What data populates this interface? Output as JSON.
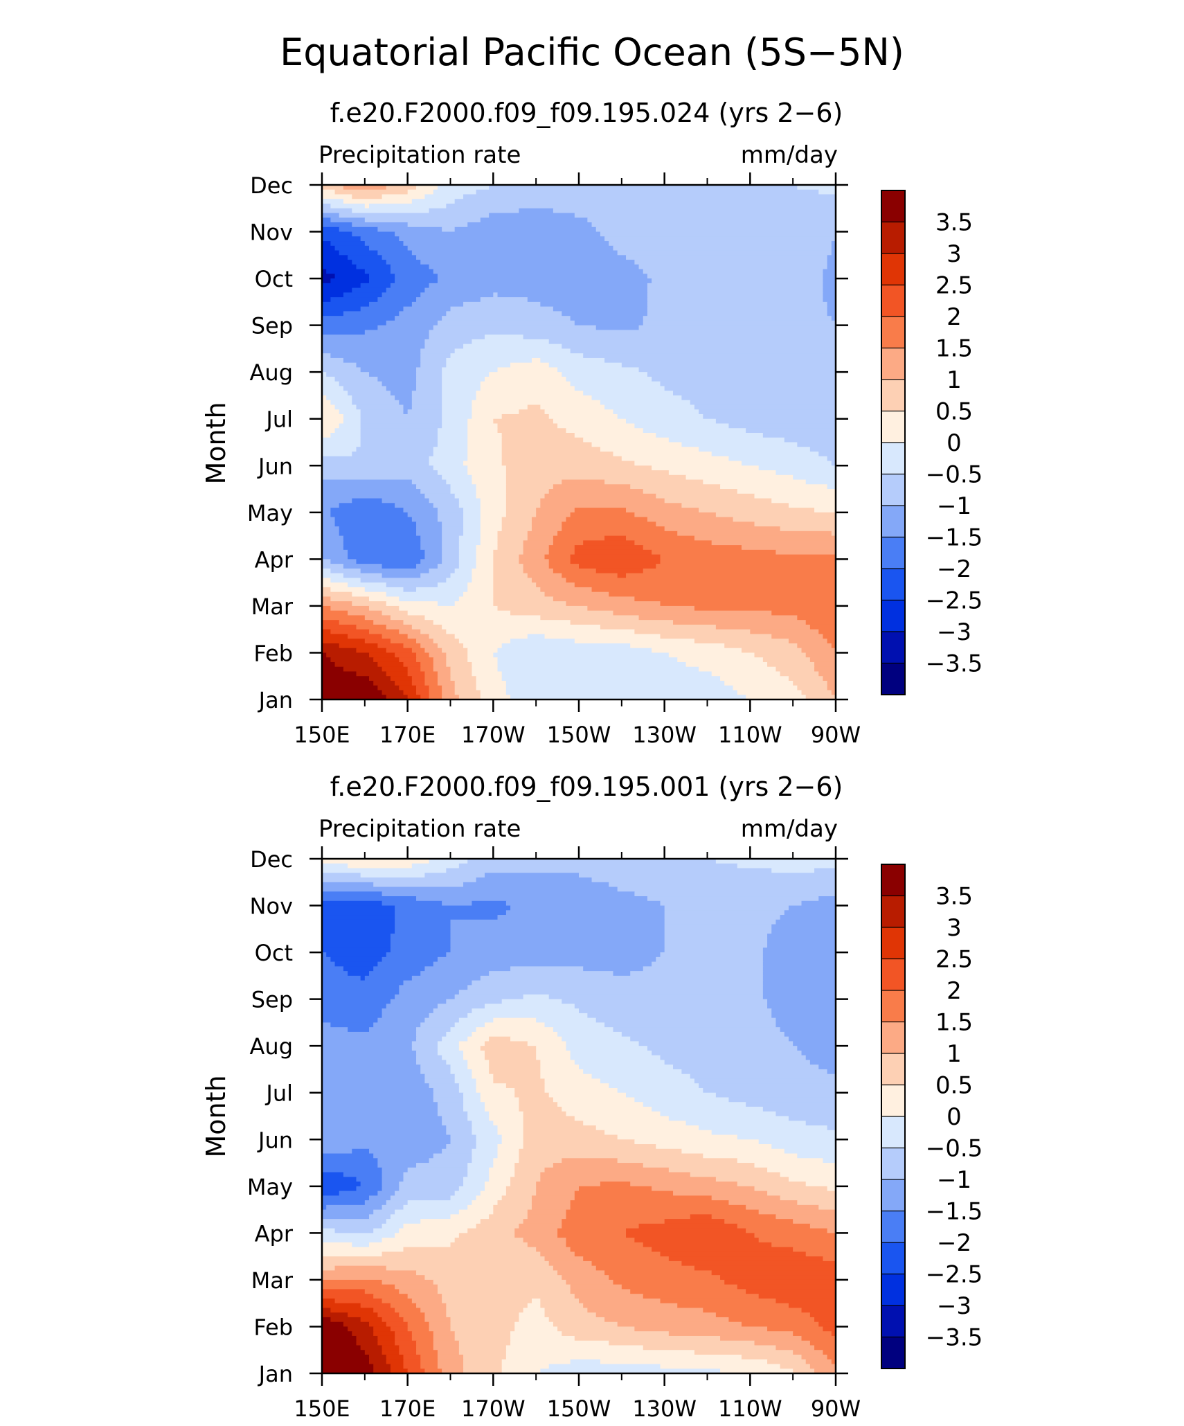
{
  "figure": {
    "title": "Equatorial Pacific Ocean (5S−5N)"
  },
  "colors": {
    "levels": [
      "#00007f",
      "#0010b0",
      "#0030e0",
      "#1a55f0",
      "#4a7ef5",
      "#84a8f8",
      "#b5ccfb",
      "#d8e8fd",
      "#fff0e0",
      "#fdd0b4",
      "#fcaa85",
      "#f97c4a",
      "#f25525",
      "#e03505",
      "#b81c00",
      "#8a0000"
    ],
    "axis": "#000000"
  },
  "chart_data": [
    {
      "type": "heatmap",
      "subtitle": "f.e20.F2000.f09_f09.195.024 (yrs 2−6)",
      "left_label": "Precipitation rate",
      "right_label": "mm/day",
      "ylabel": "Month",
      "xticks": [
        "150E",
        "170E",
        "170W",
        "150W",
        "130W",
        "110W",
        "90W"
      ],
      "yticks": [
        "Jan",
        "Feb",
        "Mar",
        "Apr",
        "May",
        "Jun",
        "Jul",
        "Aug",
        "Sep",
        "Oct",
        "Nov",
        "Dec"
      ],
      "colorbar_labels": [
        "3.5",
        "3",
        "2.5",
        "2",
        "1.5",
        "1",
        "0.5",
        "0",
        "−0.5",
        "−1",
        "−1.5",
        "−2",
        "−2.5",
        "−3",
        "−3.5"
      ],
      "xlim": [
        150,
        270
      ],
      "ylim": [
        1,
        12
      ],
      "levels": [
        -3.5,
        -3,
        -2.5,
        -2,
        -1.5,
        -1,
        -0.5,
        0,
        0.5,
        1,
        1.5,
        2,
        2.5,
        3,
        3.5
      ],
      "x": [
        150,
        160,
        170,
        180,
        190,
        200,
        210,
        220,
        230,
        240,
        250,
        260,
        270
      ],
      "z": [
        [
          4.0,
          4.0,
          3.0,
          1.2,
          0.2,
          -0.3,
          -0.3,
          -0.3,
          -0.3,
          -0.3,
          0.0,
          0.3,
          1.0
        ],
        [
          3.5,
          3.0,
          2.2,
          0.8,
          0.0,
          -0.5,
          -0.3,
          -0.3,
          0.0,
          0.2,
          0.5,
          0.8,
          1.5
        ],
        [
          1.5,
          1.0,
          0.2,
          0.0,
          0.5,
          0.8,
          1.0,
          1.3,
          1.5,
          1.6,
          1.6,
          1.7,
          2.0
        ],
        [
          -1.0,
          -1.8,
          -2.0,
          -0.8,
          0.5,
          1.3,
          2.2,
          2.4,
          2.0,
          1.8,
          1.7,
          1.6,
          1.6
        ],
        [
          -1.4,
          -2.0,
          -1.5,
          -0.8,
          0.3,
          1.0,
          1.6,
          1.6,
          1.2,
          1.0,
          0.8,
          0.6,
          0.5
        ],
        [
          -0.8,
          -0.5,
          -0.8,
          -0.2,
          0.4,
          0.8,
          0.8,
          0.6,
          0.4,
          0.2,
          0.0,
          -0.2,
          -0.5
        ],
        [
          0.6,
          -0.6,
          -1.0,
          -0.4,
          0.5,
          0.6,
          0.3,
          0.0,
          -0.3,
          -0.5,
          -0.7,
          -0.8,
          -0.9
        ],
        [
          -0.5,
          -1.0,
          -1.2,
          -0.3,
          0.0,
          0.3,
          -0.2,
          -0.4,
          -0.6,
          -0.7,
          -0.8,
          -0.8,
          -0.9
        ],
        [
          -1.8,
          -1.6,
          -1.3,
          -0.8,
          -0.6,
          -0.8,
          -1.0,
          -1.1,
          -0.9,
          -0.8,
          -0.8,
          -0.9,
          -1.0
        ],
        [
          -3.2,
          -2.6,
          -1.8,
          -1.4,
          -1.2,
          -1.2,
          -1.3,
          -1.2,
          -0.9,
          -0.8,
          -0.8,
          -0.8,
          -1.1
        ],
        [
          -2.4,
          -1.8,
          -1.3,
          -1.0,
          -1.3,
          -1.4,
          -1.2,
          -0.8,
          -0.7,
          -0.6,
          -0.6,
          -0.6,
          -1.0
        ],
        [
          0.8,
          1.5,
          0.8,
          -0.2,
          -0.5,
          -0.6,
          -0.6,
          -0.6,
          -0.5,
          -0.5,
          -0.5,
          -0.5,
          -0.4
        ]
      ]
    },
    {
      "type": "heatmap",
      "subtitle": "f.e20.F2000.f09_f09.195.001 (yrs 2−6)",
      "left_label": "Precipitation rate",
      "right_label": "mm/day",
      "ylabel": "Month",
      "xticks": [
        "150E",
        "170E",
        "170W",
        "150W",
        "130W",
        "110W",
        "90W"
      ],
      "yticks": [
        "Jan",
        "Feb",
        "Mar",
        "Apr",
        "May",
        "Jun",
        "Jul",
        "Aug",
        "Sep",
        "Oct",
        "Nov",
        "Dec"
      ],
      "colorbar_labels": [
        "3.5",
        "3",
        "2.5",
        "2",
        "1.5",
        "1",
        "0.5",
        "0",
        "−0.5",
        "−1",
        "−1.5",
        "−2",
        "−2.5",
        "−3",
        "−3.5"
      ],
      "xlim": [
        150,
        270
      ],
      "ylim": [
        1,
        12
      ],
      "levels": [
        -3.5,
        -3,
        -2.5,
        -2,
        -1.5,
        -1,
        -0.5,
        0,
        0.5,
        1,
        1.5,
        2,
        2.5,
        3,
        3.5
      ],
      "x": [
        150,
        160,
        170,
        180,
        190,
        200,
        210,
        220,
        230,
        240,
        250,
        260,
        270
      ],
      "z": [
        [
          4.0,
          3.8,
          2.5,
          1.2,
          0.6,
          0.0,
          -0.3,
          -0.3,
          -0.2,
          -0.1,
          0.0,
          0.4,
          1.4
        ],
        [
          4.0,
          3.2,
          2.0,
          1.0,
          0.7,
          0.3,
          0.8,
          1.0,
          1.2,
          1.3,
          1.5,
          1.7,
          2.2
        ],
        [
          1.4,
          1.6,
          1.2,
          0.8,
          0.7,
          0.6,
          1.2,
          1.6,
          1.8,
          1.9,
          2.2,
          2.4,
          2.3
        ],
        [
          -0.3,
          -0.6,
          0.2,
          0.4,
          0.8,
          1.2,
          1.8,
          2.0,
          2.2,
          2.5,
          2.0,
          1.8,
          1.5
        ],
        [
          -2.5,
          -2.0,
          -0.8,
          -0.8,
          0.2,
          1.0,
          1.5,
          1.6,
          1.4,
          1.2,
          1.0,
          0.6,
          0.4
        ],
        [
          -1.0,
          -1.4,
          -1.3,
          -1.0,
          -0.2,
          0.8,
          0.7,
          0.5,
          0.3,
          0.1,
          0.0,
          -0.3,
          -0.4
        ],
        [
          -1.3,
          -1.5,
          -1.3,
          -0.8,
          0.4,
          0.6,
          0.2,
          0.0,
          -0.3,
          -0.5,
          -0.7,
          -0.8,
          -0.9
        ],
        [
          -1.3,
          -1.4,
          -1.1,
          -0.2,
          0.8,
          0.5,
          -0.2,
          -0.4,
          -0.6,
          -0.7,
          -0.8,
          -1.0,
          -1.2
        ],
        [
          -1.7,
          -1.8,
          -1.3,
          -1.0,
          -0.6,
          -0.4,
          -0.6,
          -0.8,
          -0.8,
          -0.8,
          -0.9,
          -1.2,
          -1.4
        ],
        [
          -2.0,
          -2.3,
          -1.8,
          -1.5,
          -1.3,
          -1.2,
          -1.2,
          -1.2,
          -1.0,
          -0.9,
          -0.9,
          -1.2,
          -1.4
        ],
        [
          -2.4,
          -2.3,
          -1.9,
          -1.5,
          -1.6,
          -1.4,
          -1.4,
          -1.2,
          -1.0,
          -0.9,
          -0.9,
          -1.0,
          -1.2
        ],
        [
          0.3,
          0.5,
          0.4,
          -0.2,
          -0.8,
          -0.8,
          -0.8,
          -0.6,
          -0.6,
          -0.5,
          -0.4,
          -0.3,
          -0.3
        ]
      ]
    }
  ]
}
